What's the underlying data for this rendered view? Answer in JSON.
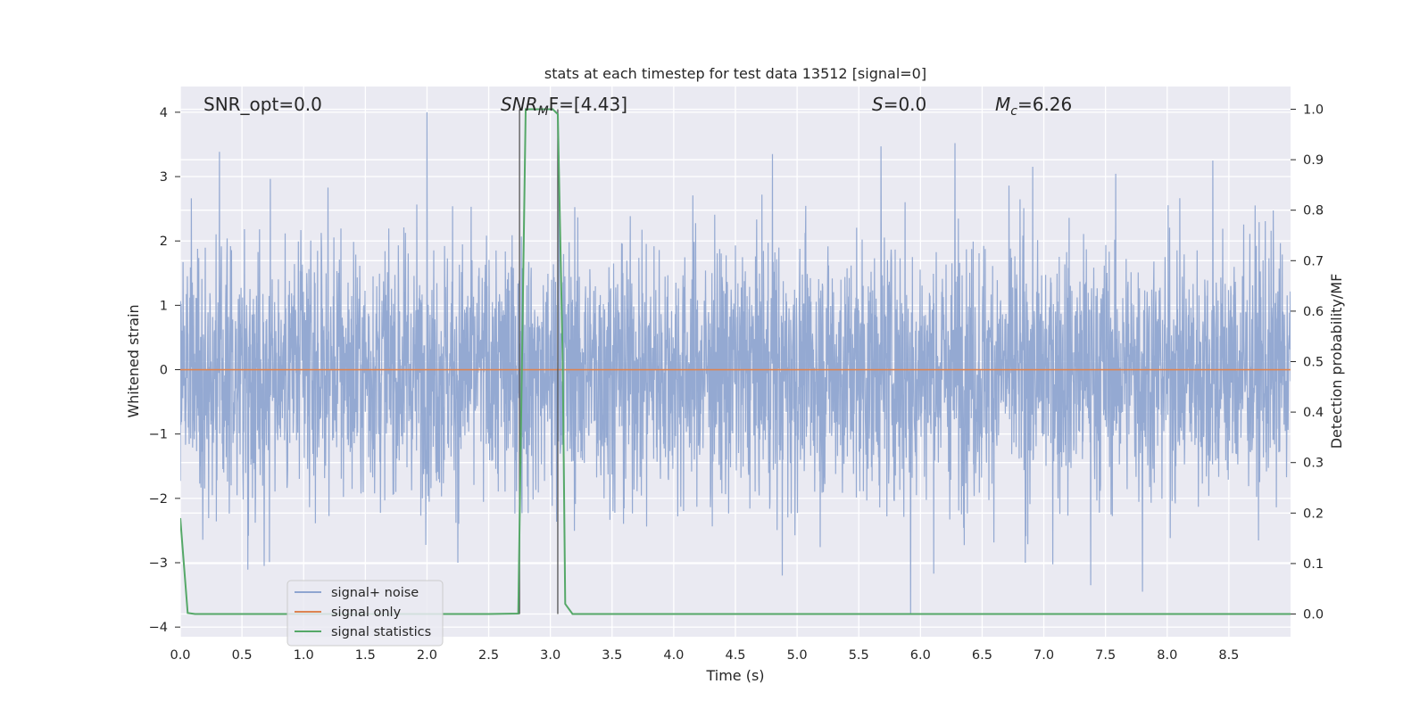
{
  "chart_data": {
    "type": "line",
    "title": "stats at each timestep for test data 13512 [signal=0]",
    "xlabel": "Time (s)",
    "ylabel": "Whitened strain",
    "y2label": "Detection probability/MF",
    "xlim": [
      0.0,
      9.0
    ],
    "ylim": [
      -4.15,
      4.4
    ],
    "y2lim": [
      -0.045,
      1.045
    ],
    "xticks": [
      0.0,
      0.5,
      1.0,
      1.5,
      2.0,
      2.5,
      3.0,
      3.5,
      4.0,
      4.5,
      5.0,
      5.5,
      6.0,
      6.5,
      7.0,
      7.5,
      8.0,
      8.5
    ],
    "xtick_labels": [
      "0.0",
      "0.5",
      "1.0",
      "1.5",
      "2.0",
      "2.5",
      "3.0",
      "3.5",
      "4.0",
      "4.5",
      "5.0",
      "5.5",
      "6.0",
      "6.5",
      "7.0",
      "7.5",
      "8.0",
      "8.5"
    ],
    "yticks": [
      -4,
      -3,
      -2,
      -1,
      0,
      1,
      2,
      3,
      4
    ],
    "ytick_labels": [
      "−4",
      "−3",
      "−2",
      "−1",
      "0",
      "1",
      "2",
      "3",
      "4"
    ],
    "y2ticks": [
      0.0,
      0.1,
      0.2,
      0.3,
      0.4,
      0.5,
      0.6,
      0.7,
      0.8,
      0.9,
      1.0
    ],
    "y2tick_labels": [
      "0.0",
      "0.1",
      "0.2",
      "0.3",
      "0.4",
      "0.5",
      "0.6",
      "0.7",
      "0.8",
      "0.9",
      "1.0"
    ],
    "grid": true,
    "legend_position": "lower-left",
    "annotations": {
      "snr_opt": "SNR_opt=0.0",
      "snr_mf_main": "SNR",
      "snr_mf_sub": "M",
      "snr_mf_rest": "F=[4.43]",
      "s_main": "S",
      "s_rest": "=0.0",
      "mc_main": "M",
      "mc_sub": "c",
      "mc_rest": "=6.26"
    },
    "vertical_lines": [
      2.75,
      3.06
    ],
    "series": [
      {
        "name": "signal+ noise",
        "color": "#8fa5d0",
        "axis": "left",
        "noise_envelope_sigma": 1.0,
        "peaks": [
          [
            0.68,
            3.5
          ],
          [
            2.0,
            4.0
          ],
          [
            3.07,
            3.33
          ],
          [
            4.8,
            3.35
          ],
          [
            5.68,
            3.47
          ],
          [
            6.28,
            3.52
          ],
          [
            8.37,
            3.25
          ],
          [
            5.92,
            -3.8
          ],
          [
            4.88,
            -3.2
          ],
          [
            7.8,
            -3.45
          ],
          [
            7.38,
            -3.35
          ],
          [
            0.68,
            -3.05
          ],
          [
            2.25,
            -3.0
          ],
          [
            6.85,
            -3.0
          ]
        ]
      },
      {
        "name": "signal only",
        "color": "#dd8452",
        "axis": "left",
        "x": [
          0.0,
          9.0
        ],
        "y": [
          0.0,
          0.0
        ]
      },
      {
        "name": "signal statistics",
        "color": "#55a868",
        "axis": "right",
        "x": [
          0.0,
          0.06,
          0.12,
          2.5,
          2.74,
          2.8,
          2.88,
          2.95,
          3.02,
          3.06,
          3.08,
          3.1,
          3.12,
          3.18,
          9.0
        ],
        "y": [
          0.19,
          0.002,
          0.0,
          0.0,
          0.001,
          1.0,
          1.0,
          1.0,
          1.0,
          0.99,
          0.75,
          0.5,
          0.02,
          0.0,
          0.0
        ]
      }
    ]
  }
}
